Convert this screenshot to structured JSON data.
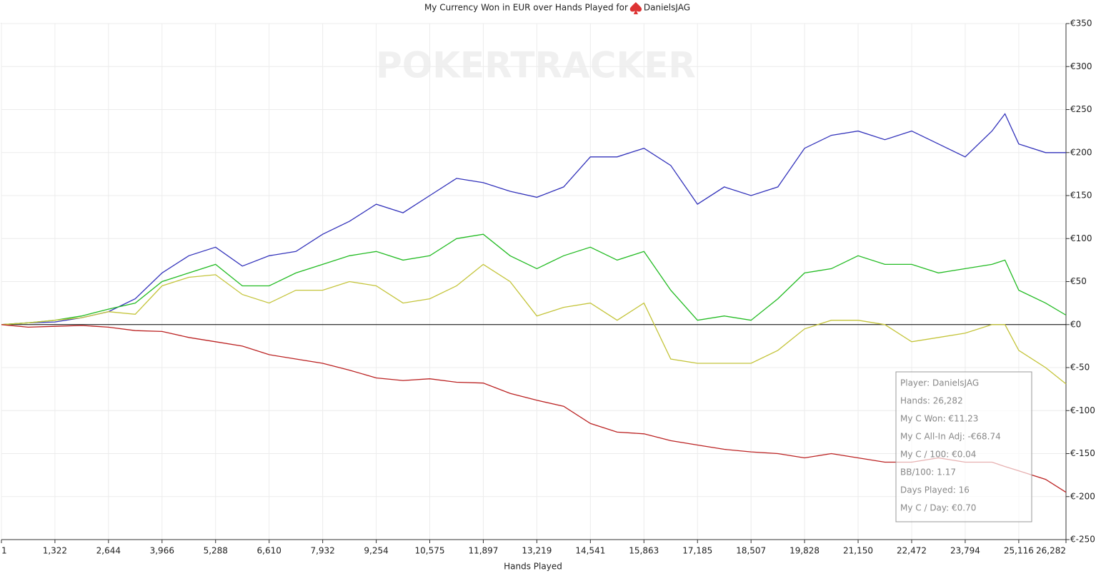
{
  "chart_data": {
    "type": "line",
    "title": "My Currency Won in EUR over Hands Played for",
    "player": "DanielsJAG",
    "watermark": "POKERTRACKER",
    "x_label": "Hands Played",
    "x": [
      1,
      661,
      1322,
      1983,
      2644,
      3305,
      3966,
      4627,
      5288,
      5949,
      6610,
      7271,
      7932,
      8593,
      9254,
      9915,
      10575,
      11236,
      11897,
      12558,
      13219,
      13880,
      14541,
      15202,
      15863,
      16524,
      17185,
      17846,
      18507,
      19168,
      19828,
      20489,
      21150,
      21811,
      22472,
      23133,
      23794,
      24455,
      24776,
      25116,
      25777,
      26282
    ],
    "series": [
      {
        "color": "#3333bb",
        "values": [
          0,
          2,
          3,
          8,
          15,
          30,
          60,
          80,
          90,
          68,
          80,
          85,
          105,
          120,
          140,
          130,
          150,
          170,
          165,
          155,
          148,
          160,
          195,
          195,
          205,
          185,
          140,
          160,
          150,
          160,
          205,
          220,
          225,
          215,
          225,
          210,
          195,
          225,
          245,
          210,
          200,
          200
        ]
      },
      {
        "color": "#22bb22",
        "values": [
          0,
          2,
          5,
          10,
          18,
          25,
          50,
          60,
          70,
          45,
          45,
          60,
          70,
          80,
          85,
          75,
          80,
          100,
          105,
          80,
          65,
          80,
          90,
          75,
          85,
          40,
          5,
          10,
          5,
          30,
          60,
          65,
          80,
          70,
          70,
          60,
          65,
          70,
          75,
          40,
          25,
          11
        ]
      },
      {
        "color": "#c4c43a",
        "values": [
          0,
          2,
          5,
          8,
          15,
          12,
          45,
          55,
          58,
          35,
          25,
          40,
          40,
          50,
          45,
          25,
          30,
          45,
          70,
          50,
          10,
          20,
          25,
          5,
          25,
          -40,
          -45,
          -45,
          -45,
          -30,
          -5,
          5,
          5,
          0,
          -20,
          -15,
          -10,
          0,
          0,
          -30,
          -50,
          -69
        ]
      },
      {
        "color": "#bb2222",
        "values": [
          0,
          -3,
          -2,
          -1,
          -3,
          -7,
          -8,
          -15,
          -20,
          -25,
          -35,
          -40,
          -45,
          -53,
          -62,
          -65,
          -63,
          -67,
          -68,
          -80,
          -88,
          -95,
          -115,
          -125,
          -127,
          -135,
          -140,
          -145,
          -148,
          -150,
          -155,
          -150,
          -155,
          -160,
          -160,
          -155,
          -160,
          -160,
          -165,
          -170,
          -180,
          -195
        ]
      }
    ],
    "xlim": [
      1,
      26282
    ],
    "xticks": [
      1,
      {
        "value": 1322,
        "label": "1,322"
      },
      {
        "value": 2644,
        "label": "2,644"
      },
      {
        "value": 3966,
        "label": "3,966"
      },
      {
        "value": 5288,
        "label": "5,288"
      },
      {
        "value": 6610,
        "label": "6,610"
      },
      {
        "value": 7932,
        "label": "7,932"
      },
      {
        "value": 9254,
        "label": "9,254"
      },
      {
        "value": 10575,
        "label": "10,575"
      },
      {
        "value": 11897,
        "label": "11,897"
      },
      {
        "value": 13219,
        "label": "13,219"
      },
      {
        "value": 14541,
        "label": "14,541"
      },
      {
        "value": 15863,
        "label": "15,863"
      },
      {
        "value": 17185,
        "label": "17,185"
      },
      {
        "value": 18507,
        "label": "18,507"
      },
      {
        "value": 19828,
        "label": "19,828"
      },
      {
        "value": 21150,
        "label": "21,150"
      },
      {
        "value": 22472,
        "label": "22,472"
      },
      {
        "value": 23794,
        "label": "23,794"
      },
      {
        "value": 25116,
        "label": "25,116"
      },
      {
        "value": 26282,
        "label": "26,282"
      }
    ],
    "ylim": [
      -250,
      350
    ],
    "yticks": [
      {
        "value": -250,
        "label": "€-250"
      },
      {
        "value": -200,
        "label": "€-200"
      },
      {
        "value": -150,
        "label": "€-150"
      },
      {
        "value": -100,
        "label": "€-100"
      },
      {
        "value": -50,
        "label": "€-50"
      },
      {
        "value": 0,
        "label": "€0"
      },
      {
        "value": 50,
        "label": "€50"
      },
      {
        "value": 100,
        "label": "€100"
      },
      {
        "value": 150,
        "label": "€150"
      },
      {
        "value": 200,
        "label": "€200"
      },
      {
        "value": 250,
        "label": "€250"
      },
      {
        "value": 300,
        "label": "€300"
      },
      {
        "value": 350,
        "label": "€350"
      }
    ],
    "grid": true,
    "tooltip": [
      "Player: DanielsJAG",
      "Hands: 26,282",
      "My C Won: €11.23",
      "My C All-In Adj: -€68.74",
      "My C / 100: €0.04",
      "BB/100: 1.17",
      "Days Played: 16",
      "My C / Day: €0.70"
    ]
  }
}
